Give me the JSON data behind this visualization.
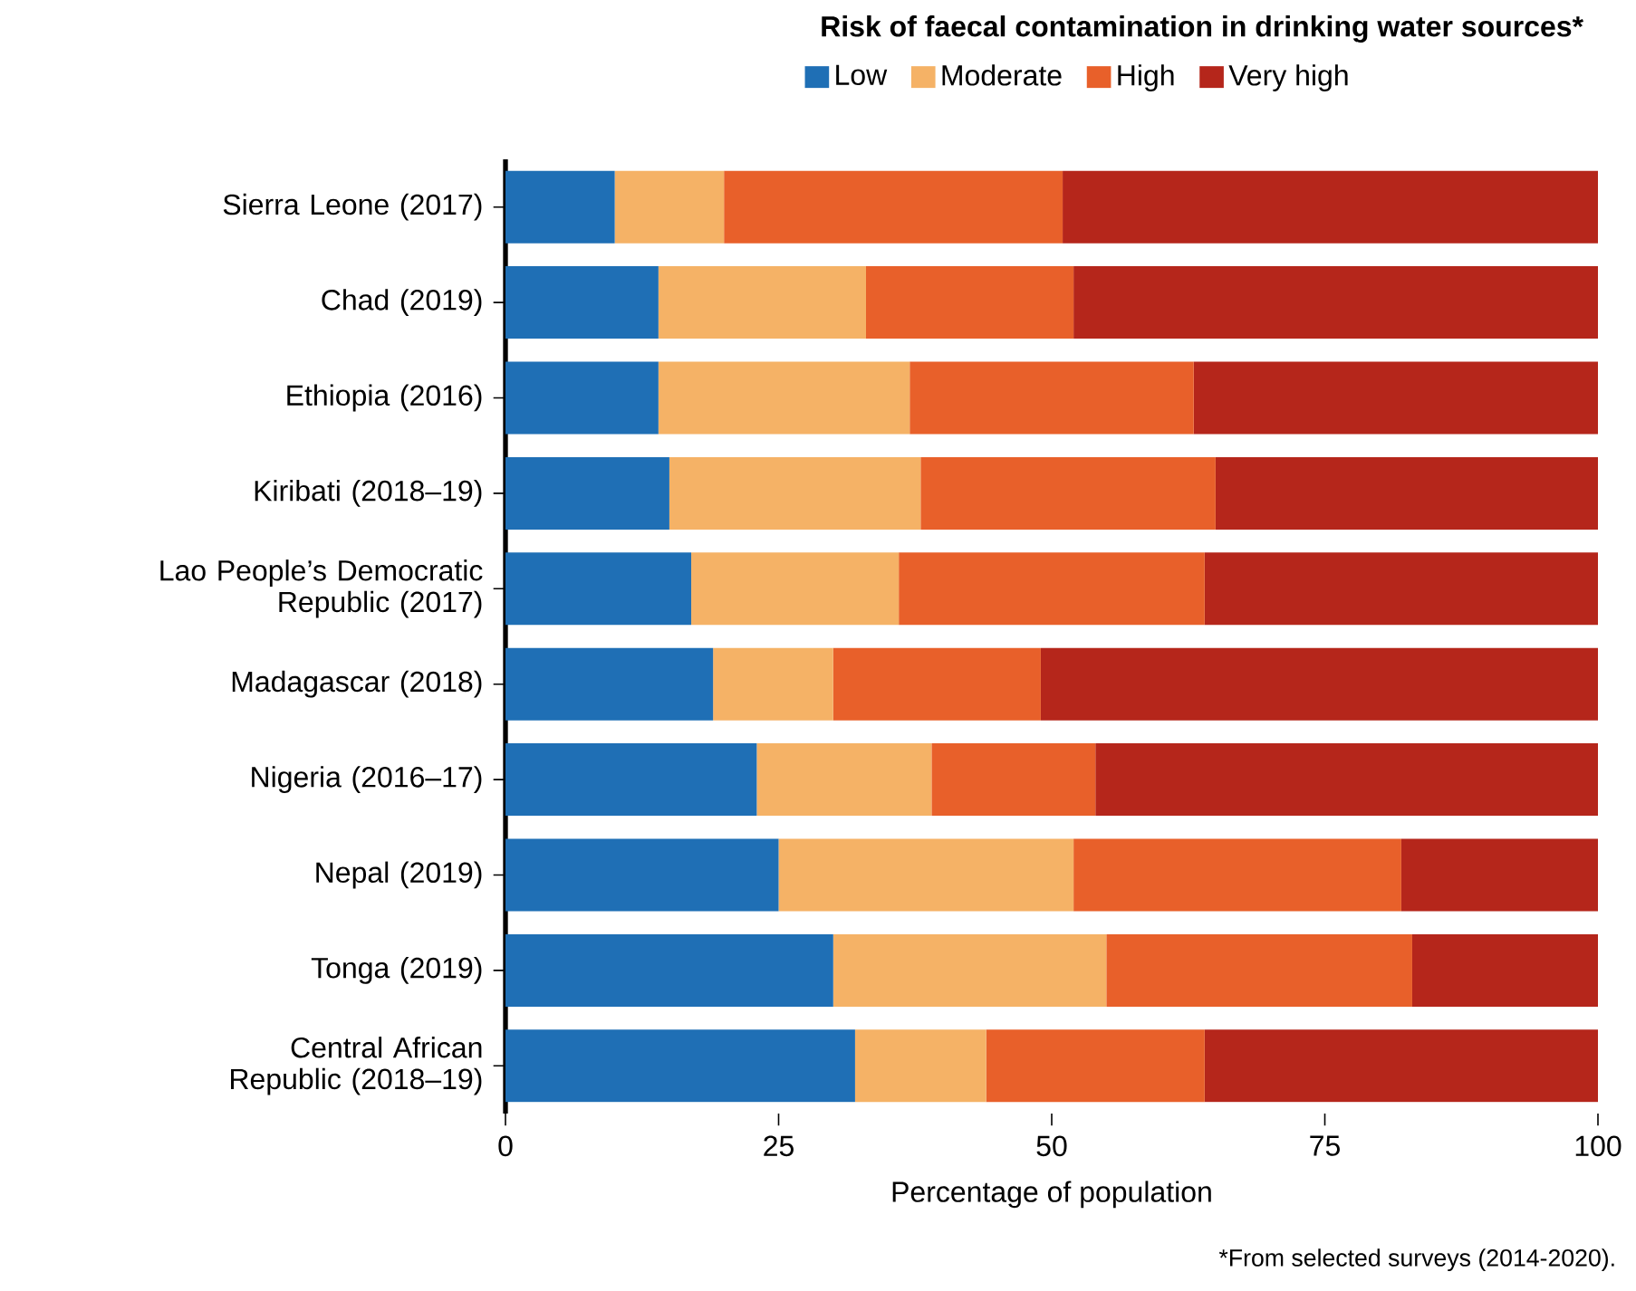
{
  "chart_data": {
    "type": "bar",
    "orientation": "horizontal",
    "stacked": true,
    "title": "Risk of faecal contamination in drinking water sources*",
    "xlabel": "Percentage of population",
    "categories": [
      "Sierra Leone (2017)",
      "Chad (2019)",
      "Ethiopia (2016)",
      "Kiribati (2018–19)",
      "Lao People’s Democratic Republic (2017)",
      "Madagascar (2018)",
      "Nigeria (2016–17)",
      "Nepal (2019)",
      "Tonga (2019)",
      "Central African Republic (2018–19)"
    ],
    "series": [
      {
        "name": "Low",
        "color": "#1f6fb5",
        "values": [
          10,
          14,
          14,
          15,
          17,
          19,
          23,
          25,
          30,
          32
        ]
      },
      {
        "name": "Moderate",
        "color": "#f5b266",
        "values": [
          10,
          19,
          23,
          23,
          19,
          11,
          16,
          27,
          25,
          12
        ]
      },
      {
        "name": "High",
        "color": "#e8602a",
        "values": [
          31,
          19,
          26,
          27,
          28,
          19,
          15,
          30,
          28,
          20
        ]
      },
      {
        "name": "Very high",
        "color": "#b5261b",
        "values": [
          49,
          48,
          37,
          35,
          36,
          51,
          46,
          18,
          17,
          36
        ]
      }
    ],
    "xlim": [
      0,
      100
    ],
    "xticks": [
      0,
      25,
      50,
      75,
      100
    ],
    "legend": "top",
    "grid": false,
    "annotations": [
      "*From selected surveys (2014-2020)."
    ]
  }
}
